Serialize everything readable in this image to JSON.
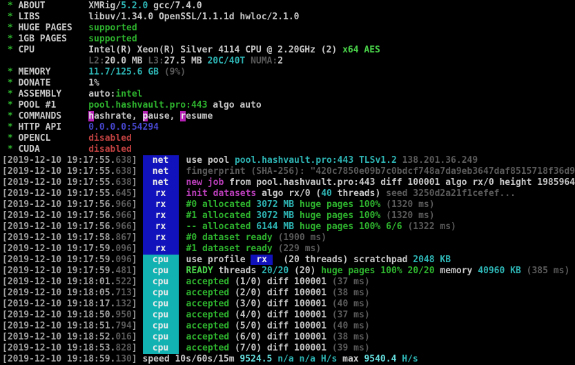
{
  "terminal": {
    "app": "XMRig miner console",
    "palette": {
      "bg": "#000000",
      "fg_white": "#c8c8c8",
      "fg_time": "#a0a0a0",
      "fg_dim": "#5a5a5a",
      "fg_green": "#2eb42e",
      "fg_green_bright": "#4ad44a",
      "fg_cyan": "#2eb4b4",
      "fg_cyan_bright": "#66dede",
      "fg_magenta": "#bb3fbb",
      "fg_red": "#bf4040",
      "fg_blue": "#4646cf",
      "bg_blue": "#1212bc",
      "bg_cyan": "#12b2b2",
      "bg_magenta": "#b520b5",
      "badge_text": "#ececec"
    },
    "lines": [
      {
        "seg": [
          [
            " * ",
            "g"
          ],
          [
            "ABOUT        ",
            "w"
          ],
          [
            "XMRig/",
            "w"
          ],
          [
            "5.2.0",
            "c"
          ],
          [
            " gcc/7.4.0",
            "w"
          ]
        ]
      },
      {
        "seg": [
          [
            " * ",
            "g"
          ],
          [
            "LIBS         ",
            "w"
          ],
          [
            "libuv/1.34.0 OpenSSL/1.1.1d hwloc/2.1.0",
            "w"
          ]
        ]
      },
      {
        "seg": [
          [
            " * ",
            "g"
          ],
          [
            "HUGE PAGES   ",
            "w"
          ],
          [
            "supported",
            "g"
          ]
        ]
      },
      {
        "seg": [
          [
            " * ",
            "g"
          ],
          [
            "1GB PAGES    ",
            "w"
          ],
          [
            "supported",
            "g"
          ]
        ]
      },
      {
        "seg": [
          [
            " * ",
            "g"
          ],
          [
            "CPU          ",
            "w"
          ],
          [
            "Intel(R) Xeon(R) Silver 4114 CPU @ 2.20GHz (2) ",
            "w"
          ],
          [
            "x64 AES",
            "G"
          ]
        ]
      },
      {
        "seg": [
          [
            "                ",
            "w"
          ],
          [
            "L2:",
            "d"
          ],
          [
            "20.0 MB ",
            "w"
          ],
          [
            "L3:",
            "d"
          ],
          [
            "27.5 MB ",
            "w"
          ],
          [
            "20C/40T ",
            "c"
          ],
          [
            "NUMA:",
            "d"
          ],
          [
            "2",
            "w"
          ]
        ]
      },
      {
        "seg": [
          [
            " * ",
            "g"
          ],
          [
            "MEMORY       ",
            "w"
          ],
          [
            "11.7/125.6 GB ",
            "c"
          ],
          [
            "(9%)",
            "d"
          ]
        ]
      },
      {
        "seg": [
          [
            " * ",
            "g"
          ],
          [
            "DONATE       ",
            "w"
          ],
          [
            "1%",
            "w"
          ]
        ]
      },
      {
        "seg": [
          [
            " * ",
            "g"
          ],
          [
            "ASSEMBLY     ",
            "w"
          ],
          [
            "auto:",
            "w"
          ],
          [
            "intel",
            "g"
          ]
        ]
      },
      {
        "seg": [
          [
            " * ",
            "g"
          ],
          [
            "POOL #1      ",
            "w"
          ],
          [
            "pool.hashvault.pro:443",
            "g"
          ],
          [
            " algo auto",
            "w"
          ]
        ]
      },
      {
        "seg": [
          [
            " * ",
            "g"
          ],
          [
            "COMMANDS     ",
            "w"
          ],
          [
            "h",
            "M"
          ],
          [
            "ashrate, ",
            "w"
          ],
          [
            "p",
            "M"
          ],
          [
            "ause, ",
            "w"
          ],
          [
            "r",
            "M"
          ],
          [
            "esume",
            "w"
          ]
        ]
      },
      {
        "seg": [
          [
            " * ",
            "g"
          ],
          [
            "HTTP API     ",
            "w"
          ],
          [
            "0.0.0.0:54294",
            "b"
          ]
        ]
      },
      {
        "seg": [
          [
            " * ",
            "g"
          ],
          [
            "OPENCL       ",
            "w"
          ],
          [
            "disabled",
            "r"
          ]
        ]
      },
      {
        "seg": [
          [
            " * ",
            "g"
          ],
          [
            "CUDA         ",
            "w"
          ],
          [
            "disabled",
            "r"
          ]
        ]
      },
      {
        "seg": [
          [
            "[2019-12-10 19:17:55.",
            "t"
          ],
          [
            "638",
            "d"
          ],
          [
            "] ",
            "t"
          ],
          [
            "net",
            "BB"
          ],
          [
            "use pool ",
            "w"
          ],
          [
            "pool.hashvault.pro:443 ",
            "c"
          ],
          [
            "TLSv1.2 ",
            "c"
          ],
          [
            "138.201.36.249",
            "d"
          ]
        ]
      },
      {
        "seg": [
          [
            "[2019-12-10 19:17:55.",
            "t"
          ],
          [
            "638",
            "d"
          ],
          [
            "] ",
            "t"
          ],
          [
            "net",
            "BB"
          ],
          [
            "fingerprint (SHA-256): \"420c7850e09b7c0bdcf748a7da9eb3647daf8515718f36d96",
            "d"
          ]
        ]
      },
      {
        "seg": [
          [
            "[2019-12-10 19:17:55.",
            "t"
          ],
          [
            "638",
            "d"
          ],
          [
            "] ",
            "t"
          ],
          [
            "net",
            "BB"
          ],
          [
            "new job ",
            "m"
          ],
          [
            "from pool.hashvault.pro:443 diff 100001 algo rx/0 height 1985964",
            "w"
          ]
        ]
      },
      {
        "seg": [
          [
            "[2019-12-10 19:17:55.",
            "t"
          ],
          [
            "645",
            "d"
          ],
          [
            "] ",
            "t"
          ],
          [
            "rx",
            "BB"
          ],
          [
            "init datasets",
            "m"
          ],
          [
            " algo rx/0 (",
            "w"
          ],
          [
            "40",
            "c"
          ],
          [
            " threads) ",
            "w"
          ],
          [
            "seed 3250d2a21f1cefef...",
            "d"
          ]
        ]
      },
      {
        "seg": [
          [
            "[2019-12-10 19:17:56.",
            "t"
          ],
          [
            "966",
            "d"
          ],
          [
            "] ",
            "t"
          ],
          [
            "rx",
            "BB"
          ],
          [
            "#0 allocated ",
            "g"
          ],
          [
            "3072 MB ",
            "c"
          ],
          [
            "huge pages 100% ",
            "g"
          ],
          [
            "(1320 ms)",
            "d"
          ]
        ]
      },
      {
        "seg": [
          [
            "[2019-12-10 19:17:56.",
            "t"
          ],
          [
            "966",
            "d"
          ],
          [
            "] ",
            "t"
          ],
          [
            "rx",
            "BB"
          ],
          [
            "#1 allocated ",
            "g"
          ],
          [
            "3072 MB ",
            "c"
          ],
          [
            "huge pages 100% ",
            "g"
          ],
          [
            "(1320 ms)",
            "d"
          ]
        ]
      },
      {
        "seg": [
          [
            "[2019-12-10 19:17:56.",
            "t"
          ],
          [
            "966",
            "d"
          ],
          [
            "] ",
            "t"
          ],
          [
            "rx",
            "BB"
          ],
          [
            "-- allocated ",
            "g"
          ],
          [
            "6144 MB ",
            "c"
          ],
          [
            "huge pages 100% 6/6 ",
            "g"
          ],
          [
            "(1322 ms)",
            "d"
          ]
        ]
      },
      {
        "seg": [
          [
            "[2019-12-10 19:17:58.",
            "t"
          ],
          [
            "867",
            "d"
          ],
          [
            "] ",
            "t"
          ],
          [
            "rx",
            "BB"
          ],
          [
            "#0 dataset ready ",
            "g"
          ],
          [
            "(1900 ms)",
            "d"
          ]
        ]
      },
      {
        "seg": [
          [
            "[2019-12-10 19:17:59.",
            "t"
          ],
          [
            "096",
            "d"
          ],
          [
            "] ",
            "t"
          ],
          [
            "rx",
            "BB"
          ],
          [
            "#1 dataset ready ",
            "g"
          ],
          [
            "(229 ms)",
            "d"
          ]
        ]
      },
      {
        "seg": [
          [
            "[2019-12-10 19:17:59.",
            "t"
          ],
          [
            "096",
            "d"
          ],
          [
            "] ",
            "t"
          ],
          [
            "cpu",
            "BC"
          ],
          [
            "use profile ",
            "w"
          ],
          [
            " rx ",
            "IB"
          ],
          [
            "  (20 threads) scratchpad ",
            "w"
          ],
          [
            "2048 KB",
            "c"
          ]
        ]
      },
      {
        "seg": [
          [
            "[2019-12-10 19:17:59.",
            "t"
          ],
          [
            "481",
            "d"
          ],
          [
            "] ",
            "t"
          ],
          [
            "cpu",
            "BC"
          ],
          [
            "READY",
            "G"
          ],
          [
            " threads ",
            "w"
          ],
          [
            "20/20",
            "c"
          ],
          [
            " (20) ",
            "w"
          ],
          [
            "huge pages 100% 20/20 ",
            "g"
          ],
          [
            "memory ",
            "w"
          ],
          [
            "40960 KB ",
            "c"
          ],
          [
            "(385 ms)",
            "d"
          ]
        ]
      },
      {
        "seg": [
          [
            "[2019-12-10 19:18:01.",
            "t"
          ],
          [
            "522",
            "d"
          ],
          [
            "] ",
            "t"
          ],
          [
            "cpu",
            "BC"
          ],
          [
            "accepted ",
            "g"
          ],
          [
            "(1/0) diff 100001 ",
            "w"
          ],
          [
            "(37 ms)",
            "d"
          ]
        ]
      },
      {
        "seg": [
          [
            "[2019-12-10 19:18:05.",
            "t"
          ],
          [
            "713",
            "d"
          ],
          [
            "] ",
            "t"
          ],
          [
            "cpu",
            "BC"
          ],
          [
            "accepted ",
            "g"
          ],
          [
            "(2/0) diff 100001 ",
            "w"
          ],
          [
            "(38 ms)",
            "d"
          ]
        ]
      },
      {
        "seg": [
          [
            "[2019-12-10 19:18:17.",
            "t"
          ],
          [
            "132",
            "d"
          ],
          [
            "] ",
            "t"
          ],
          [
            "cpu",
            "BC"
          ],
          [
            "accepted ",
            "g"
          ],
          [
            "(3/0) diff 100001 ",
            "w"
          ],
          [
            "(40 ms)",
            "d"
          ]
        ]
      },
      {
        "seg": [
          [
            "[2019-12-10 19:18:50.",
            "t"
          ],
          [
            "950",
            "d"
          ],
          [
            "] ",
            "t"
          ],
          [
            "cpu",
            "BC"
          ],
          [
            "accepted ",
            "g"
          ],
          [
            "(4/0) diff 100001 ",
            "w"
          ],
          [
            "(37 ms)",
            "d"
          ]
        ]
      },
      {
        "seg": [
          [
            "[2019-12-10 19:18:51.",
            "t"
          ],
          [
            "794",
            "d"
          ],
          [
            "] ",
            "t"
          ],
          [
            "cpu",
            "BC"
          ],
          [
            "accepted ",
            "g"
          ],
          [
            "(5/0) diff 100001 ",
            "w"
          ],
          [
            "(40 ms)",
            "d"
          ]
        ]
      },
      {
        "seg": [
          [
            "[2019-12-10 19:18:52.",
            "t"
          ],
          [
            "016",
            "d"
          ],
          [
            "] ",
            "t"
          ],
          [
            "cpu",
            "BC"
          ],
          [
            "accepted ",
            "g"
          ],
          [
            "(6/0) diff 100001 ",
            "w"
          ],
          [
            "(38 ms)",
            "d"
          ]
        ]
      },
      {
        "seg": [
          [
            "[2019-12-10 19:18:53.",
            "t"
          ],
          [
            "828",
            "d"
          ],
          [
            "] ",
            "t"
          ],
          [
            "cpu",
            "BC"
          ],
          [
            "accepted ",
            "g"
          ],
          [
            "(7/0) diff 100001 ",
            "w"
          ],
          [
            "(39 ms)",
            "d"
          ]
        ]
      },
      {
        "seg": [
          [
            "[2019-12-10 19:18:59.",
            "t"
          ],
          [
            "130",
            "d"
          ],
          [
            "] ",
            "t"
          ],
          [
            "speed 10s/60s/15m ",
            "w"
          ],
          [
            "9524.5 ",
            "C"
          ],
          [
            "n/a n/a ",
            "c"
          ],
          [
            "H/s ",
            "c"
          ],
          [
            "max ",
            "w"
          ],
          [
            "9540.4 ",
            "C"
          ],
          [
            "H/s",
            "c"
          ]
        ]
      }
    ]
  }
}
